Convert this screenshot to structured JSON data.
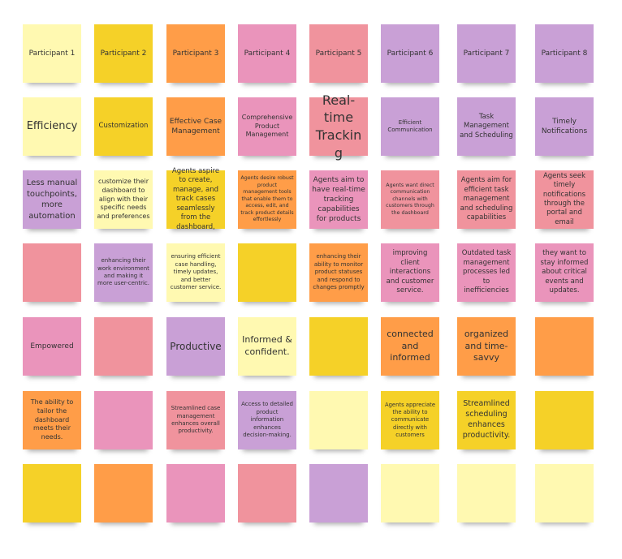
{
  "colors": {
    "lightyellow": "#fff9b1",
    "yellow": "#f5d128",
    "orange": "#ff9d48",
    "pink": "#ea94bb",
    "red": "#f0939d",
    "purple": "#c9a0d6"
  },
  "rows": [
    {
      "colors": [
        "lightyellow",
        "yellow",
        "orange",
        "pink",
        "red",
        "purple",
        "purple",
        "purple"
      ],
      "texts": [
        "Participant 1",
        "Participant 2",
        "Participant 3",
        "Participant 4",
        "Participant 5",
        "Participant 6",
        "Participant 7",
        "Participant 8"
      ]
    },
    {
      "colors": [
        "lightyellow",
        "yellow",
        "orange",
        "pink",
        "red",
        "purple",
        "purple",
        "purple"
      ],
      "texts": [
        "Efficiency",
        "Customization",
        "Effective Case Management",
        "Comprehensive Product Management",
        "Real-time Tracking",
        "Efficient Communication",
        "Task Management and Scheduling",
        "Timely Notifications"
      ]
    },
    {
      "colors": [
        "purple",
        "lightyellow",
        "yellow",
        "orange",
        "pink",
        "red",
        "red",
        "red"
      ],
      "texts": [
        "Less manual touchpoints, more automation",
        "customize their dashboard to align with their specific needs and preferences",
        "Agents aspire to create, manage, and track cases seamlessly from the dashboard,",
        "Agents desire robust product management tools that enable them to access, edit, and track product details effortlessly",
        "Agents aim to have real-time tracking capabilities for products",
        "Agents want direct communication channels with customers through the dashboard",
        "Agents aim for efficient task management and scheduling capabilities",
        "Agents seek timely notifications through the portal and email"
      ]
    },
    {
      "colors": [
        "red",
        "purple",
        "lightyellow",
        "yellow",
        "orange",
        "pink",
        "pink",
        "pink"
      ],
      "texts": [
        "",
        "enhancing their work environment and making it more user-centric.",
        "ensuring efficient case handling, timely updates, and better customer service.",
        "",
        "enhancing their ability to monitor product statuses and respond to changes promptly",
        "improving client interactions and customer service.",
        "Outdated task management processes led to inefficiencies",
        "they want to stay informed about critical events and updates."
      ]
    },
    {
      "colors": [
        "pink",
        "red",
        "purple",
        "lightyellow",
        "yellow",
        "orange",
        "orange",
        "orange"
      ],
      "texts": [
        "Empowered",
        "",
        "Productive",
        "Informed & confident.",
        "",
        "connected and informed",
        "organized and time-savvy",
        ""
      ]
    },
    {
      "colors": [
        "orange",
        "pink",
        "red",
        "purple",
        "lightyellow",
        "yellow",
        "yellow",
        "yellow"
      ],
      "texts": [
        "The ability to tailor the dashboard meets their needs.",
        "",
        "Streamlined case management enhances overall productivity.",
        "Access to detailed product information enhances decision-making.",
        "",
        "Agents appreciate the ability to communicate directly with customers",
        "Streamlined scheduling enhances productivity.",
        ""
      ]
    },
    {
      "colors": [
        "yellow",
        "orange",
        "pink",
        "red",
        "purple",
        "lightyellow",
        "lightyellow",
        "lightyellow"
      ],
      "texts": [
        "",
        "",
        "",
        "",
        "",
        "",
        "",
        ""
      ]
    }
  ]
}
